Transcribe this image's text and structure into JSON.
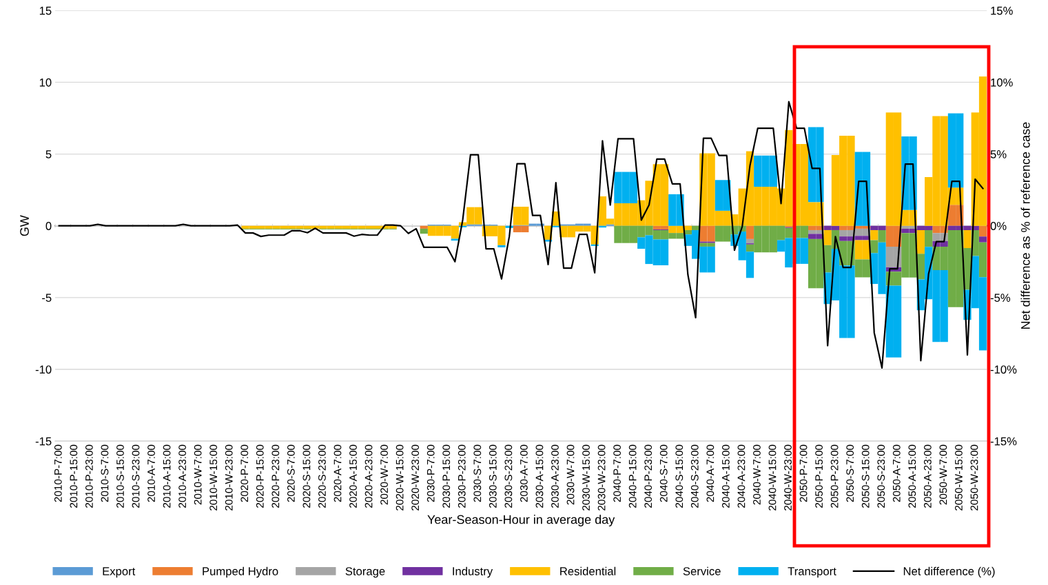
{
  "chart_data": {
    "type": "bar",
    "stacked": true,
    "xlabel": "Year-Season-Hour in average day",
    "ylabel": "GW",
    "y2label": "Net difference as % of reference case",
    "categories": [
      "2010-P-7:00",
      null,
      "2010-P-15:00",
      null,
      "2010-P-23:00",
      null,
      "2010-S-7:00",
      null,
      "2010-S-15:00",
      null,
      "2010-S-23:00",
      null,
      "2010-A-7:00",
      null,
      "2010-A-15:00",
      null,
      "2010-A-23:00",
      null,
      "2010-W-7:00",
      null,
      "2010-W-15:00",
      null,
      "2010-W-23:00",
      null,
      "2020-P-7:00",
      null,
      "2020-P-15:00",
      null,
      "2020-P-23:00",
      null,
      "2020-S-7:00",
      null,
      "2020-S-15:00",
      null,
      "2020-S-23:00",
      null,
      "2020-A-7:00",
      null,
      "2020-A-15:00",
      null,
      "2020-A-23:00",
      null,
      "2020-W-7:00",
      null,
      "2020-W-15:00",
      null,
      "2020-W-23:00",
      null,
      "2030-P-7:00",
      null,
      "2030-P-15:00",
      null,
      "2030-P-23:00",
      null,
      "2030-S-7:00",
      null,
      "2030-S-15:00",
      null,
      "2030-S-23:00",
      null,
      "2030-A-7:00",
      null,
      "2030-A-15:00",
      null,
      "2030-A-23:00",
      null,
      "2030-W-7:00",
      null,
      "2030-W-15:00",
      null,
      "2030-W-23:00",
      null,
      "2040-P-7:00",
      null,
      "2040-P-15:00",
      null,
      "2040-P-23:00",
      null,
      "2040-S-7:00",
      null,
      "2040-S-15:00",
      null,
      "2040-S-23:00",
      null,
      "2040-A-7:00",
      null,
      "2040-A-15:00",
      null,
      "2040-A-23:00",
      null,
      "2040-W-7:00",
      null,
      "2040-W-15:00",
      null,
      "2040-W-23:00",
      null,
      "2050-P-7:00",
      null,
      "2050-P-15:00",
      null,
      "2050-P-23:00",
      null,
      "2050-S-7:00",
      null,
      "2050-S-15:00",
      null,
      "2050-S-23:00",
      null,
      "2050-A-7:00",
      null,
      "2050-A-15:00",
      null,
      "2050-A-23:00",
      null,
      "2050-W-7:00",
      null,
      "2050-W-15:00",
      null,
      "2050-W-23:00",
      null
    ],
    "ylim": [
      -15,
      15
    ],
    "yticks": [
      -15,
      -10,
      -5,
      0,
      5,
      10,
      15
    ],
    "y2lim": [
      -15,
      15
    ],
    "y2ticks": [
      {
        "value": -15,
        "label": "-15%"
      },
      {
        "value": -10,
        "label": "-10%"
      },
      {
        "value": -5,
        "label": "-5%"
      },
      {
        "value": 0,
        "label": "0%"
      },
      {
        "value": 5,
        "label": "5%"
      },
      {
        "value": 10,
        "label": "10%"
      },
      {
        "value": 15,
        "label": "15%"
      }
    ],
    "grid": "y",
    "legend": "bottom",
    "series": [
      {
        "name": "Export",
        "color": "#5b9bd5",
        "values": [
          null,
          null,
          null,
          null,
          null,
          null,
          null,
          null,
          null,
          null,
          null,
          null,
          null,
          null,
          null,
          null,
          null,
          null,
          null,
          null,
          null,
          null,
          null,
          null,
          null,
          null,
          null,
          null,
          null,
          null,
          null,
          null,
          null,
          null,
          null,
          null,
          null,
          null,
          null,
          null,
          null,
          null,
          null,
          null,
          null,
          null,
          null,
          null,
          0.08,
          0.08,
          0.08,
          null,
          null,
          0.1,
          0.1,
          0.08,
          0.08,
          null,
          null,
          0.05,
          0.05,
          0.15,
          0.15,
          null,
          null,
          0.1,
          0.1,
          0.15,
          0.15,
          null,
          null,
          0.1,
          null,
          null,
          null,
          null,
          null,
          null,
          null,
          null,
          null,
          null,
          null,
          null,
          null,
          null,
          null,
          null,
          null,
          null,
          null,
          null,
          null,
          null,
          null,
          null,
          null,
          null,
          null,
          null,
          null,
          null,
          null,
          null,
          null,
          null,
          null,
          null,
          null,
          null,
          null,
          null,
          null,
          null,
          null,
          null,
          null,
          null,
          null,
          null
        ]
      },
      {
        "name": "Pumped Hydro",
        "color": "#ed7d31",
        "values": [
          0,
          0,
          0,
          0,
          0,
          0,
          0,
          0,
          0,
          0,
          0,
          0,
          0,
          0,
          0,
          0,
          0,
          0,
          0,
          0,
          0,
          0,
          0,
          0,
          0,
          0,
          0,
          0,
          0,
          0,
          0,
          0,
          0,
          0,
          0,
          0,
          0,
          0,
          0,
          0,
          0,
          0,
          0,
          0,
          0,
          0,
          0,
          -0.2,
          0,
          0,
          0,
          0,
          0,
          0,
          0,
          0,
          0,
          0,
          0,
          -0.45,
          -0.45,
          0,
          0,
          0,
          0,
          0,
          0,
          0,
          0,
          0,
          0,
          0,
          0,
          0,
          0,
          0,
          0,
          -0.25,
          -0.25,
          0,
          0,
          0,
          0,
          -1.1,
          -1.1,
          0,
          0,
          0,
          0,
          -0.92,
          0,
          0,
          0,
          0,
          -0.1,
          0,
          0,
          -0.3,
          -0.3,
          0,
          0,
          -0.3,
          -0.3,
          -0.2,
          -0.2,
          0,
          0,
          -1.45,
          -1.45,
          0,
          0,
          0,
          0,
          -0.5,
          -0.5,
          1.46,
          1.46,
          0,
          0,
          -0.75
        ]
      },
      {
        "name": "Storage",
        "color": "#a5a5a5",
        "values": [
          0,
          0,
          0,
          0,
          0,
          0,
          0,
          0,
          0,
          0,
          0,
          0,
          0,
          0,
          0,
          0,
          0,
          0,
          0,
          0,
          0,
          0,
          0,
          0,
          0,
          0,
          0,
          0,
          0,
          0,
          0,
          0,
          0,
          0,
          0,
          0,
          0,
          0,
          0,
          0,
          0,
          0,
          0,
          0,
          0,
          0,
          0,
          0,
          0,
          0,
          0,
          0,
          0,
          0,
          0,
          0,
          0,
          0,
          0,
          0,
          0,
          0,
          0,
          0,
          0,
          0,
          0,
          0,
          0,
          0,
          0,
          0,
          0,
          0,
          0,
          0,
          0,
          0,
          0,
          0,
          0,
          0,
          0,
          0,
          0,
          0,
          0,
          0,
          0,
          -0.3,
          0,
          0,
          0,
          0,
          0,
          0,
          0,
          -0.26,
          -0.26,
          0,
          0,
          -0.44,
          -0.44,
          -0.5,
          -0.5,
          0,
          0,
          -1.45,
          -1.45,
          -0.2,
          -0.2,
          0,
          0,
          -0.57,
          -0.57,
          0,
          0,
          0,
          0,
          0
        ]
      },
      {
        "name": "Industry",
        "color": "#7030a0",
        "values": [
          0,
          0,
          0,
          0,
          0,
          0,
          0,
          0,
          0,
          0,
          0,
          0,
          0,
          0,
          0,
          0,
          0,
          0,
          0,
          0,
          0,
          0,
          0,
          0,
          0,
          0,
          0,
          0,
          0,
          0,
          0,
          0,
          0,
          0,
          0,
          0,
          0,
          0,
          0,
          0,
          0,
          0,
          0,
          0,
          0,
          0,
          0,
          0,
          0,
          0,
          0,
          0,
          0,
          0,
          0,
          0,
          0,
          0,
          0,
          0,
          0,
          0,
          0,
          0,
          0,
          0,
          0,
          0,
          0,
          0,
          0,
          0,
          0,
          0,
          0,
          0,
          0,
          -0.05,
          -0.05,
          0,
          0,
          0,
          0,
          -0.1,
          -0.1,
          0,
          0,
          0,
          0,
          -0.08,
          0,
          0,
          0,
          0,
          -0.05,
          0,
          0,
          -0.36,
          -0.36,
          -0.3,
          -0.3,
          -0.32,
          -0.32,
          -0.3,
          -0.3,
          -0.3,
          -0.3,
          -0.3,
          -0.3,
          -0.3,
          -0.3,
          -0.3,
          -0.3,
          -0.39,
          -0.39,
          -0.3,
          -0.3,
          -0.3,
          -0.3,
          -0.4
        ]
      },
      {
        "name": "Residential",
        "color": "#ffc000",
        "values": [
          0,
          0,
          0,
          0,
          0,
          0,
          0,
          0,
          0,
          0,
          0,
          0,
          0,
          0,
          0,
          0,
          0,
          0,
          0,
          0,
          0,
          0,
          0,
          0,
          -0.2,
          -0.2,
          -0.2,
          -0.2,
          -0.2,
          -0.2,
          -0.2,
          -0.2,
          -0.2,
          -0.2,
          -0.2,
          -0.2,
          -0.2,
          -0.2,
          -0.2,
          -0.2,
          -0.2,
          -0.2,
          -0.2,
          -0.2,
          null,
          null,
          0,
          0,
          -0.7,
          -0.7,
          -0.7,
          -0.9,
          0.25,
          1.2,
          1.2,
          -0.73,
          -0.73,
          -1.35,
          0,
          1.28,
          1.28,
          0,
          0,
          -0.97,
          1.0,
          -0.8,
          -0.8,
          -0.4,
          -0.4,
          -1.3,
          2.05,
          0.4,
          1.57,
          1.57,
          1.57,
          1.78,
          3.14,
          4.3,
          4.3,
          -0.5,
          -0.5,
          -0.3,
          0,
          5.05,
          5.05,
          1.05,
          1.05,
          0.8,
          2.6,
          5.2,
          2.72,
          2.72,
          2.72,
          2.6,
          6.67,
          5.7,
          5.7,
          1.65,
          1.65,
          -1.05,
          4.93,
          6.28,
          6.28,
          -1.34,
          -1.34,
          -0.7,
          0,
          7.9,
          7.9,
          1.1,
          1.1,
          -1.65,
          3.4,
          7.64,
          7.64,
          1.2,
          1.2,
          -1.25,
          7.9,
          10.4
        ]
      },
      {
        "name": "Service",
        "color": "#70ad47",
        "values": [
          0,
          0,
          0,
          0,
          0,
          0,
          0,
          0,
          0,
          0,
          0,
          0,
          0,
          0,
          0,
          0,
          0,
          0,
          0,
          0,
          0,
          0,
          0,
          0,
          -0.05,
          -0.05,
          -0.05,
          -0.05,
          -0.05,
          -0.05,
          -0.05,
          -0.05,
          -0.05,
          null,
          -0.05,
          -0.05,
          -0.05,
          -0.05,
          -0.05,
          -0.05,
          -0.05,
          -0.05,
          -0.05,
          -0.05,
          0,
          0,
          0,
          -0.35,
          0,
          0,
          0,
          0,
          0,
          0,
          0,
          0,
          0,
          0,
          0,
          0,
          0,
          0,
          0,
          0,
          0,
          0,
          0,
          0,
          0,
          0,
          0,
          0,
          -1.2,
          -1.2,
          -1.2,
          -0.8,
          -0.66,
          -0.65,
          -0.65,
          -0.4,
          -0.4,
          -0.3,
          -0.3,
          -0.25,
          -0.25,
          -1.1,
          -1.1,
          -0.6,
          -0.4,
          -0.5,
          -1.85,
          -1.85,
          -1.85,
          -1.0,
          -0.7,
          -0.85,
          -0.85,
          -3.43,
          -3.43,
          -1.9,
          -1.3,
          -1.7,
          -1.7,
          -1.25,
          -1.25,
          -0.9,
          -0.85,
          -0.97,
          -0.97,
          -3.1,
          -3.1,
          -1.78,
          -1.17,
          -1.63,
          -1.63,
          -5.37,
          -5.37,
          -2.9,
          -1.8,
          -2.43
        ]
      },
      {
        "name": "Transport",
        "color": "#00b0f0",
        "values": [
          0,
          0,
          0,
          0,
          0,
          0,
          0,
          0,
          0,
          0,
          0,
          0,
          0,
          0,
          0,
          0,
          0,
          0,
          0,
          0,
          0,
          0,
          0,
          0,
          0,
          0,
          0,
          0,
          0,
          0,
          0,
          0,
          0,
          0,
          0,
          0,
          0,
          0,
          0,
          0,
          0,
          0,
          0,
          0,
          0,
          0,
          0,
          0,
          0,
          0,
          0,
          -0.13,
          -0.1,
          0,
          0,
          0,
          0,
          -0.15,
          -0.15,
          0,
          0,
          0,
          0,
          -0.13,
          -0.1,
          0,
          0,
          0,
          0,
          -0.1,
          -0.12,
          0,
          2.18,
          2.18,
          2.18,
          -0.8,
          -2.0,
          -1.8,
          -1.8,
          2.2,
          2.2,
          -0.8,
          -2.0,
          -1.8,
          -1.8,
          2.14,
          2.14,
          -0.8,
          -2.0,
          -1.83,
          2.17,
          2.17,
          2.17,
          -0.8,
          -2.05,
          -1.8,
          -1.8,
          5.23,
          5.23,
          -2.2,
          -3.6,
          -5.05,
          -5.05,
          5.15,
          5.15,
          -2.15,
          -3.6,
          -5.0,
          -5.0,
          5.13,
          5.13,
          -2.15,
          -3.64,
          -5.0,
          -5.0,
          5.18,
          5.18,
          -2.1,
          -3.64,
          -5.1
        ]
      },
      {
        "name": "Net difference (%)",
        "type": "line",
        "axis": "y2",
        "color": "#000000",
        "values": [
          0,
          0,
          0,
          0,
          0,
          0.1,
          0,
          0,
          0,
          0,
          0,
          0,
          0,
          0,
          0,
          0,
          0.1,
          0,
          0,
          0,
          0,
          0,
          0,
          0.05,
          -0.5,
          -0.5,
          -0.74,
          -0.65,
          -0.65,
          -0.65,
          -0.34,
          -0.34,
          -0.48,
          -0.17,
          -0.5,
          -0.5,
          -0.5,
          -0.5,
          -0.72,
          -0.6,
          -0.65,
          -0.65,
          0.05,
          0.05,
          0,
          -0.53,
          -0.2,
          -1.5,
          -1.5,
          -1.5,
          -1.5,
          -2.5,
          0.42,
          4.95,
          4.95,
          -1.6,
          -1.6,
          -3.7,
          -0.74,
          4.33,
          4.33,
          0.72,
          0.72,
          -2.7,
          3.0,
          -2.95,
          -2.95,
          -0.6,
          -0.6,
          -3.27,
          5.92,
          1.45,
          6.07,
          6.07,
          6.07,
          0.4,
          1.45,
          4.65,
          4.65,
          2.92,
          2.92,
          -3.4,
          -6.4,
          6.1,
          6.1,
          4.9,
          4.9,
          -1.7,
          -0.05,
          4.2,
          6.8,
          6.8,
          6.8,
          1.55,
          8.65,
          6.8,
          6.8,
          4.0,
          4.0,
          -8.35,
          -0.75,
          -2.9,
          -2.9,
          3.1,
          3.1,
          -7.45,
          -9.9,
          -3.0,
          -3.0,
          4.3,
          4.3,
          -9.4,
          -3.35,
          -1.1,
          -1.1,
          3.1,
          3.1,
          -9.0,
          3.25,
          2.6
        ]
      }
    ]
  }
}
